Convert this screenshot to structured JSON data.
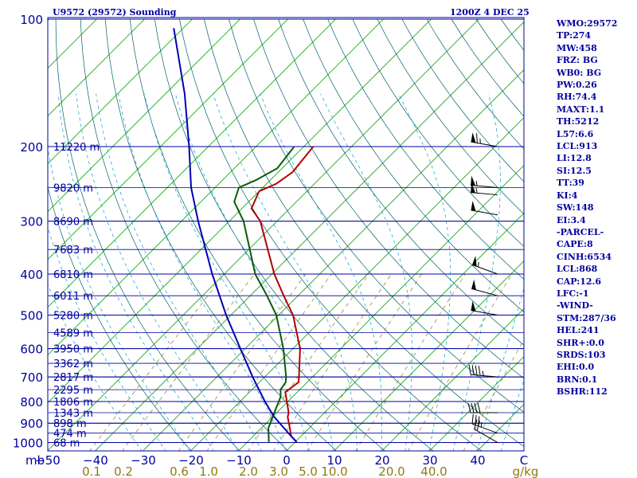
{
  "header": {
    "station": "U9572 (29572) Sounding",
    "time": "1200Z  4 DEC 25"
  },
  "chart_data": {
    "type": "skew-t",
    "title": "U9572 (29572) Sounding",
    "valid": "1200Z  4 DEC 25",
    "pressure_range_mb": [
      1050,
      100
    ],
    "pressure_ticks": [
      100,
      200,
      300,
      400,
      500,
      600,
      700,
      800,
      900,
      1000
    ],
    "pressure_axis_unit": "mb",
    "temperature_ticks": [
      "−50",
      "−40",
      "−30",
      "−20",
      "−10",
      "0",
      "10",
      "20",
      "30",
      "40"
    ],
    "temperature_unit": "C",
    "mixing_ratio_labels": [
      "0.1",
      "0.2",
      "0.6",
      "1.0",
      "2.0",
      "3.0",
      "5.0",
      "10.0",
      "20.0",
      "40.0"
    ],
    "mixing_ratio_unit": "g/kg",
    "height_labels": [
      {
        "p": 200,
        "label": "11220 m"
      },
      {
        "p": 250,
        "label": "9820 m"
      },
      {
        "p": 300,
        "label": "8690 m"
      },
      {
        "p": 350,
        "label": "7683 m"
      },
      {
        "p": 400,
        "label": "6810 m"
      },
      {
        "p": 450,
        "label": "6011 m"
      },
      {
        "p": 500,
        "label": "5280 m"
      },
      {
        "p": 550,
        "label": "4589 m"
      },
      {
        "p": 600,
        "label": "3950 m"
      },
      {
        "p": 650,
        "label": "3362 m"
      },
      {
        "p": 700,
        "label": "2817 m"
      },
      {
        "p": 750,
        "label": "2295 m"
      },
      {
        "p": 800,
        "label": "1806 m"
      },
      {
        "p": 850,
        "label": "1343 m"
      },
      {
        "p": 900,
        "label": "898 m"
      },
      {
        "p": 950,
        "label": "474 m"
      },
      {
        "p": 1000,
        "label": "68 m"
      }
    ],
    "series": [
      {
        "name": "Temperature",
        "color": "#b40000",
        "points": [
          {
            "p": 997,
            "t": 0.3
          },
          {
            "p": 965,
            "t": -2.1
          },
          {
            "p": 925,
            "t": -4.0
          },
          {
            "p": 870,
            "t": -6.8
          },
          {
            "p": 850,
            "t": -7.5
          },
          {
            "p": 800,
            "t": -10.2
          },
          {
            "p": 760,
            "t": -12.5
          },
          {
            "p": 720,
            "t": -11.8
          },
          {
            "p": 700,
            "t": -12.8
          },
          {
            "p": 600,
            "t": -18.5
          },
          {
            "p": 500,
            "t": -27.0
          },
          {
            "p": 450,
            "t": -33.0
          },
          {
            "p": 400,
            "t": -39.5
          },
          {
            "p": 300,
            "t": -53.5
          },
          {
            "p": 280,
            "t": -58.0
          },
          {
            "p": 255,
            "t": -60.0
          },
          {
            "p": 245,
            "t": -58.0
          },
          {
            "p": 230,
            "t": -57.0
          },
          {
            "p": 200,
            "t": -58.0
          }
        ]
      },
      {
        "name": "Dewpoint",
        "color": "#0a5a0a",
        "points": [
          {
            "p": 997,
            "t": -5.5
          },
          {
            "p": 925,
            "t": -8.5
          },
          {
            "p": 850,
            "t": -10.5
          },
          {
            "p": 780,
            "t": -12.5
          },
          {
            "p": 750,
            "t": -14.0
          },
          {
            "p": 720,
            "t": -14.5
          },
          {
            "p": 700,
            "t": -15.5
          },
          {
            "p": 600,
            "t": -22.0
          },
          {
            "p": 500,
            "t": -30.5
          },
          {
            "p": 450,
            "t": -36.5
          },
          {
            "p": 400,
            "t": -43.5
          },
          {
            "p": 300,
            "t": -57.0
          },
          {
            "p": 270,
            "t": -63.0
          },
          {
            "p": 250,
            "t": -65.0
          },
          {
            "p": 240,
            "t": -63.0
          },
          {
            "p": 225,
            "t": -61.0
          },
          {
            "p": 200,
            "t": -62.0
          }
        ]
      },
      {
        "name": "Parcel",
        "color": "#0000b4",
        "points": [
          {
            "p": 997,
            "t": 0.3
          },
          {
            "p": 960,
            "t": -2.5
          },
          {
            "p": 868,
            "t": -9.8
          },
          {
            "p": 800,
            "t": -14.8
          },
          {
            "p": 700,
            "t": -22.5
          },
          {
            "p": 600,
            "t": -31.0
          },
          {
            "p": 500,
            "t": -41.0
          },
          {
            "p": 400,
            "t": -52.5
          },
          {
            "p": 300,
            "t": -66.5
          },
          {
            "p": 250,
            "t": -75.0
          },
          {
            "p": 200,
            "t": -84.0
          },
          {
            "p": 150,
            "t": -96.0
          },
          {
            "p": 105,
            "t": -112.0
          }
        ]
      }
    ],
    "wind_barbs": [
      {
        "p": 200,
        "dir": 280,
        "kt": 65
      },
      {
        "p": 250,
        "dir": 275,
        "kt": 55
      },
      {
        "p": 260,
        "dir": 275,
        "kt": 55
      },
      {
        "p": 290,
        "dir": 280,
        "kt": 50
      },
      {
        "p": 400,
        "dir": 290,
        "kt": 55
      },
      {
        "p": 450,
        "dir": 285,
        "kt": 50
      },
      {
        "p": 500,
        "dir": 280,
        "kt": 50
      },
      {
        "p": 700,
        "dir": 275,
        "kt": 45
      },
      {
        "p": 850,
        "dir": 270,
        "kt": 40
      },
      {
        "p": 950,
        "dir": 290,
        "kt": 35
      },
      {
        "p": 1000,
        "dir": 300,
        "kt": 20
      }
    ]
  },
  "stats": [
    "WMO:29572",
    "TP:274",
    "MW:458",
    "FRZ: BG",
    "WB0: BG",
    "PW:0.26",
    "RH:74.4",
    "MAXT:1.1",
    "TH:5212",
    "L57:6.6",
    "LCL:913",
    "LI:12.8",
    "SI:12.5",
    "TT:39",
    "KI:4",
    "SW:148",
    "EI:3.4",
    "-PARCEL-",
    "CAPE:8",
    "CINH:6534",
    "LCL:868",
    "CAP:12.6",
    "LFC:-1",
    "-WIND-",
    "STM:287/36",
    "HEL:241",
    "SHR+:0.0",
    "SRDS:103",
    "EHI:0.0",
    "BRN:0.1",
    "BSHR:112"
  ],
  "colors": {
    "frame": "#0000a0",
    "isotherm": "#00a000",
    "dry_adiabat": "#006060",
    "moist_adiabat": "#00a0d0",
    "mixing": "#8c7a14",
    "background": "#ffffff"
  }
}
